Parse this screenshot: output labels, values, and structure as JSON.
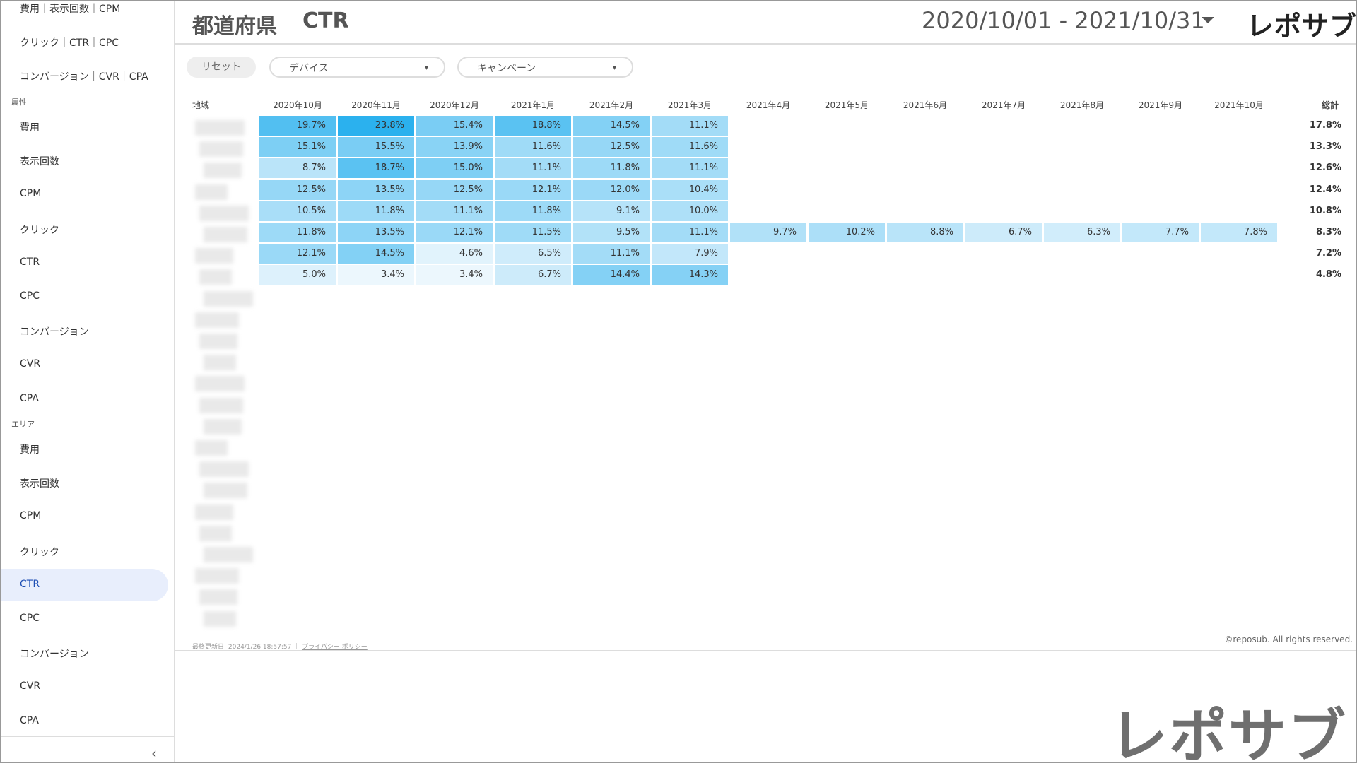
{
  "sidebar": {
    "top": [
      "費用｜表示回数｜CPM",
      "クリック｜CTR｜CPC",
      "コンバージョン｜CVR｜CPA"
    ],
    "sections": [
      {
        "title": "属性",
        "items": [
          "費用",
          "表示回数",
          "CPM",
          "クリック",
          "CTR",
          "CPC",
          "コンバージョン",
          "CVR",
          "CPA"
        ]
      },
      {
        "title": "エリア",
        "items": [
          "費用",
          "表示回数",
          "CPM",
          "クリック",
          "CTR",
          "CPC",
          "コンバージョン",
          "CVR",
          "CPA"
        ]
      }
    ],
    "collapse": "‹"
  },
  "header": {
    "title": "都道府県",
    "metric": "CTR",
    "date_range": "2020/10/01 - 2021/10/31",
    "logo": "レポサブ"
  },
  "filters": {
    "reset": "リセット",
    "device": "デバイス",
    "campaign": "キャンペーン"
  },
  "table": {
    "region_header": "地域",
    "months": [
      "2020年10月",
      "2020年11月",
      "2020年12月",
      "2021年1月",
      "2021年2月",
      "2021年3月",
      "2021年4月",
      "2021年5月",
      "2021年6月",
      "2021年7月",
      "2021年8月",
      "2021年9月",
      "2021年10月"
    ],
    "total_header": "総計",
    "rows": [
      {
        "cells": [
          "19.7%",
          "23.8%",
          "15.4%",
          "18.8%",
          "14.5%",
          "11.1%"
        ],
        "total": "17.8%"
      },
      {
        "cells": [
          "15.1%",
          "15.5%",
          "13.9%",
          "11.6%",
          "12.5%",
          "11.6%"
        ],
        "total": "13.3%"
      },
      {
        "cells": [
          "8.7%",
          "18.7%",
          "15.0%",
          "11.1%",
          "11.8%",
          "11.1%"
        ],
        "total": "12.6%"
      },
      {
        "cells": [
          "12.5%",
          "13.5%",
          "12.5%",
          "12.1%",
          "12.0%",
          "10.4%"
        ],
        "total": "12.4%"
      },
      {
        "cells": [
          "10.5%",
          "11.8%",
          "11.1%",
          "11.8%",
          "9.1%",
          "10.0%"
        ],
        "total": "10.8%"
      },
      {
        "cells": [
          "11.8%",
          "13.5%",
          "12.1%",
          "11.5%",
          "9.5%",
          "11.1%",
          "9.7%",
          "10.2%",
          "8.8%",
          "6.7%",
          "6.3%",
          "7.7%",
          "7.8%"
        ],
        "total": "8.3%"
      },
      {
        "cells": [
          "12.1%",
          "14.5%",
          "4.6%",
          "6.5%",
          "11.1%",
          "7.9%"
        ],
        "total": "7.2%"
      },
      {
        "cells": [
          "5.0%",
          "3.4%",
          "3.4%",
          "6.7%",
          "14.4%",
          "14.3%"
        ],
        "total": "4.8%"
      }
    ]
  },
  "footer": {
    "updated": "最終更新日: 2024/1/26 18:57:57",
    "privacy": "プライバシー ポリシー",
    "copyright": "©reposub. All rights reserved."
  },
  "watermark_logo": "レポサブ"
}
